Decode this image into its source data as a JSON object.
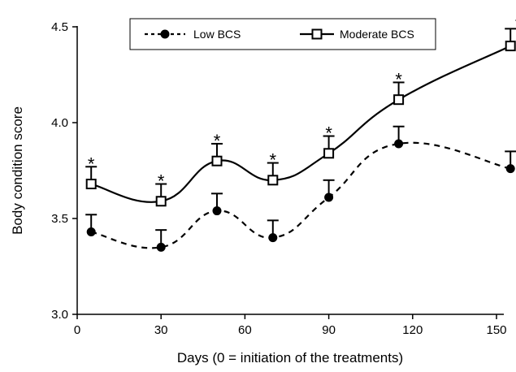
{
  "chart_data": {
    "type": "line",
    "title": "",
    "xlabel": "Days (0 = initiation of the treatments)",
    "ylabel": "Body condition score",
    "xlim": [
      0,
      155
    ],
    "ylim": [
      3.0,
      4.5
    ],
    "xticks": [
      0,
      30,
      60,
      90,
      120,
      150
    ],
    "xtick_labels": [
      "0",
      "30",
      "60",
      "90",
      "120",
      "150"
    ],
    "yticks": [
      3.0,
      3.5,
      4.0,
      4.5
    ],
    "ytick_labels": [
      "3.0",
      "3.5",
      "4.0",
      "4.5"
    ],
    "grid": false,
    "legend_position": "top",
    "series": [
      {
        "name": "Low BCS",
        "marker": "filled-circle",
        "line_style": "dashed",
        "x": [
          5,
          30,
          50,
          70,
          90,
          115,
          155
        ],
        "y": [
          3.43,
          3.35,
          3.54,
          3.4,
          3.61,
          3.89,
          3.76
        ],
        "error_upper": [
          0.09,
          0.09,
          0.09,
          0.09,
          0.09,
          0.09,
          0.09
        ]
      },
      {
        "name": "Moderate BCS",
        "marker": "open-square",
        "line_style": "solid",
        "x": [
          5,
          30,
          50,
          70,
          90,
          115,
          155
        ],
        "y": [
          3.68,
          3.59,
          3.8,
          3.7,
          3.84,
          4.12,
          4.4
        ],
        "error_upper": [
          0.09,
          0.09,
          0.09,
          0.09,
          0.09,
          0.09,
          0.09
        ]
      }
    ],
    "annotations": [
      {
        "text": "*",
        "x": 5
      },
      {
        "text": "*",
        "x": 30
      },
      {
        "text": "*",
        "x": 50
      },
      {
        "text": "*",
        "x": 70
      },
      {
        "text": "*",
        "x": 90
      },
      {
        "text": "*",
        "x": 115
      },
      {
        "text": "*",
        "x": 155
      }
    ]
  }
}
